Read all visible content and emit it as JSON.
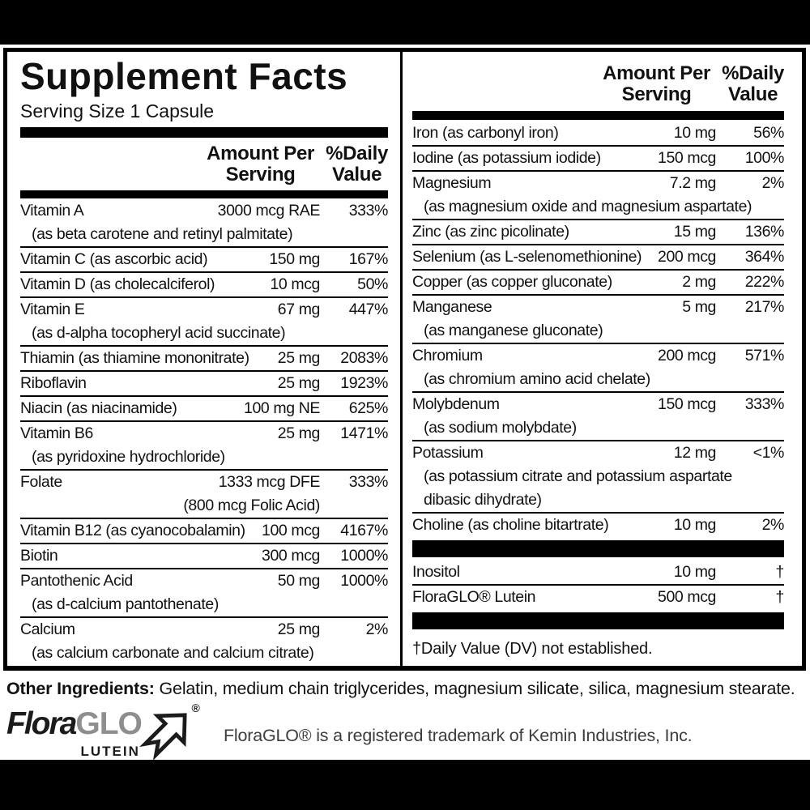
{
  "title": "Supplement Facts",
  "serving_size": "Serving Size 1 Capsule",
  "col_header": {
    "amount_l1": "Amount Per",
    "amount_l2": "Serving",
    "dv_l1": "%Daily",
    "dv_l2": "Value"
  },
  "left_col": {
    "items": [
      {
        "name": "Vitamin A",
        "amount": "3000 mcg RAE",
        "dv": "333%",
        "subs": [
          "(as beta carotene and retinyl palmitate)"
        ]
      },
      {
        "name": "Vitamin C (as ascorbic acid)",
        "amount": "150 mg",
        "dv": "167%"
      },
      {
        "name": "Vitamin D (as cholecalciferol)",
        "amount": "10 mcg",
        "dv": "50%"
      },
      {
        "name": "Vitamin E",
        "amount": "67 mg",
        "dv": "447%",
        "subs": [
          "(as d-alpha tocopheryl acid succinate)"
        ]
      },
      {
        "name": "Thiamin (as thiamine mononitrate)",
        "amount": "25 mg",
        "dv": "2083%"
      },
      {
        "name": "Riboflavin",
        "amount": "25 mg",
        "dv": "1923%"
      },
      {
        "name": "Niacin (as niacinamide)",
        "amount": "100 mg NE",
        "dv": "625%"
      },
      {
        "name": "Vitamin B6",
        "amount": "25 mg",
        "dv": "1471%",
        "subs": [
          "(as pyridoxine hydrochloride)"
        ]
      },
      {
        "name": "Folate",
        "amount": "1333 mcg DFE",
        "dv": "333%",
        "subs_right": [
          "(800 mcg Folic Acid)"
        ]
      },
      {
        "name": "Vitamin B12 (as cyanocobalamin)",
        "amount": "100 mcg",
        "dv": "4167%"
      },
      {
        "name": "Biotin",
        "amount": "300 mcg",
        "dv": "1000%"
      },
      {
        "name": "Pantothenic Acid",
        "amount": "50 mg",
        "dv": "1000%",
        "subs": [
          "(as d-calcium pantothenate)"
        ]
      },
      {
        "name": "Calcium",
        "amount": "25 mg",
        "dv": "2%",
        "subs": [
          "(as calcium carbonate and calcium citrate)"
        ]
      }
    ]
  },
  "right_col": {
    "items": [
      {
        "bar": "sm"
      },
      {
        "name": "Iron (as carbonyl iron)",
        "amount": "10 mg",
        "dv": "56%"
      },
      {
        "name": "Iodine (as potassium iodide)",
        "amount": "150 mcg",
        "dv": "100%"
      },
      {
        "name": "Magnesium",
        "amount": "7.2 mg",
        "dv": "2%",
        "subs": [
          "(as magnesium oxide and magnesium aspartate)"
        ]
      },
      {
        "name": "Zinc (as zinc picolinate)",
        "amount": "15 mg",
        "dv": "136%"
      },
      {
        "name": "Selenium (as L-selenomethionine)",
        "amount": "200 mcg",
        "dv": "364%"
      },
      {
        "name": "Copper (as copper gluconate)",
        "amount": "2 mg",
        "dv": "222%"
      },
      {
        "name": "Manganese",
        "amount": "5 mg",
        "dv": "217%",
        "subs": [
          "(as manganese gluconate)"
        ]
      },
      {
        "name": "Chromium",
        "amount": "200 mcg",
        "dv": "571%",
        "subs": [
          "(as chromium amino acid chelate)"
        ]
      },
      {
        "name": "Molybdenum",
        "amount": "150 mcg",
        "dv": "333%",
        "subs": [
          "(as sodium molybdate)"
        ]
      },
      {
        "name": "Potassium",
        "amount": "12 mg",
        "dv": "<1%",
        "subs": [
          "(as potassium citrate and potassium aspartate",
          "dibasic dihydrate)"
        ]
      },
      {
        "name": "Choline (as choline bitartrate)",
        "amount": "10 mg",
        "dv": "2%"
      },
      {
        "bar": "lg"
      },
      {
        "name": "Inositol",
        "amount": "10 mg",
        "dv": "†"
      },
      {
        "name": "FloraGLO® Lutein",
        "amount": "500 mcg",
        "dv": "†"
      },
      {
        "bar": "lg"
      }
    ],
    "footnote": "†Daily Value (DV) not established."
  },
  "other_ingredients": {
    "label": "Other Ingredients:",
    "text": " Gelatin, medium chain triglycerides, magnesium silicate, silica, magnesium stearate."
  },
  "logo": {
    "flora": "Flora",
    "glo": "GLO",
    "lutein": "LUTEIN",
    "registered": "®"
  },
  "trademark_note": "FloraGLO® is a registered trademark of Kemin Industries, Inc.",
  "colors": {
    "ink": "#000000",
    "logo_gray": "#8e8e8e"
  }
}
